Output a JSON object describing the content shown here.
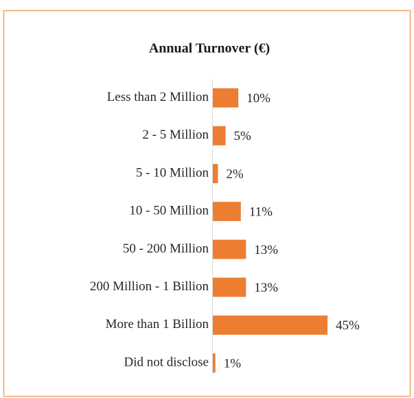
{
  "chart_data": {
    "type": "bar",
    "orientation": "horizontal",
    "title": "Annual Turnover (€)",
    "categories": [
      "Less than 2 Million",
      "2 - 5 Million",
      "5 - 10 Million",
      "10 - 50 Million",
      "50 - 200 Million",
      "200 Million - 1 Billion",
      "More than 1 Billion",
      "Did not disclose"
    ],
    "values": [
      10,
      5,
      2,
      11,
      13,
      13,
      45,
      1
    ],
    "value_labels": [
      "10%",
      "5%",
      "2%",
      "11%",
      "13%",
      "13%",
      "45%",
      "1%"
    ],
    "color": "#ed7d31"
  }
}
